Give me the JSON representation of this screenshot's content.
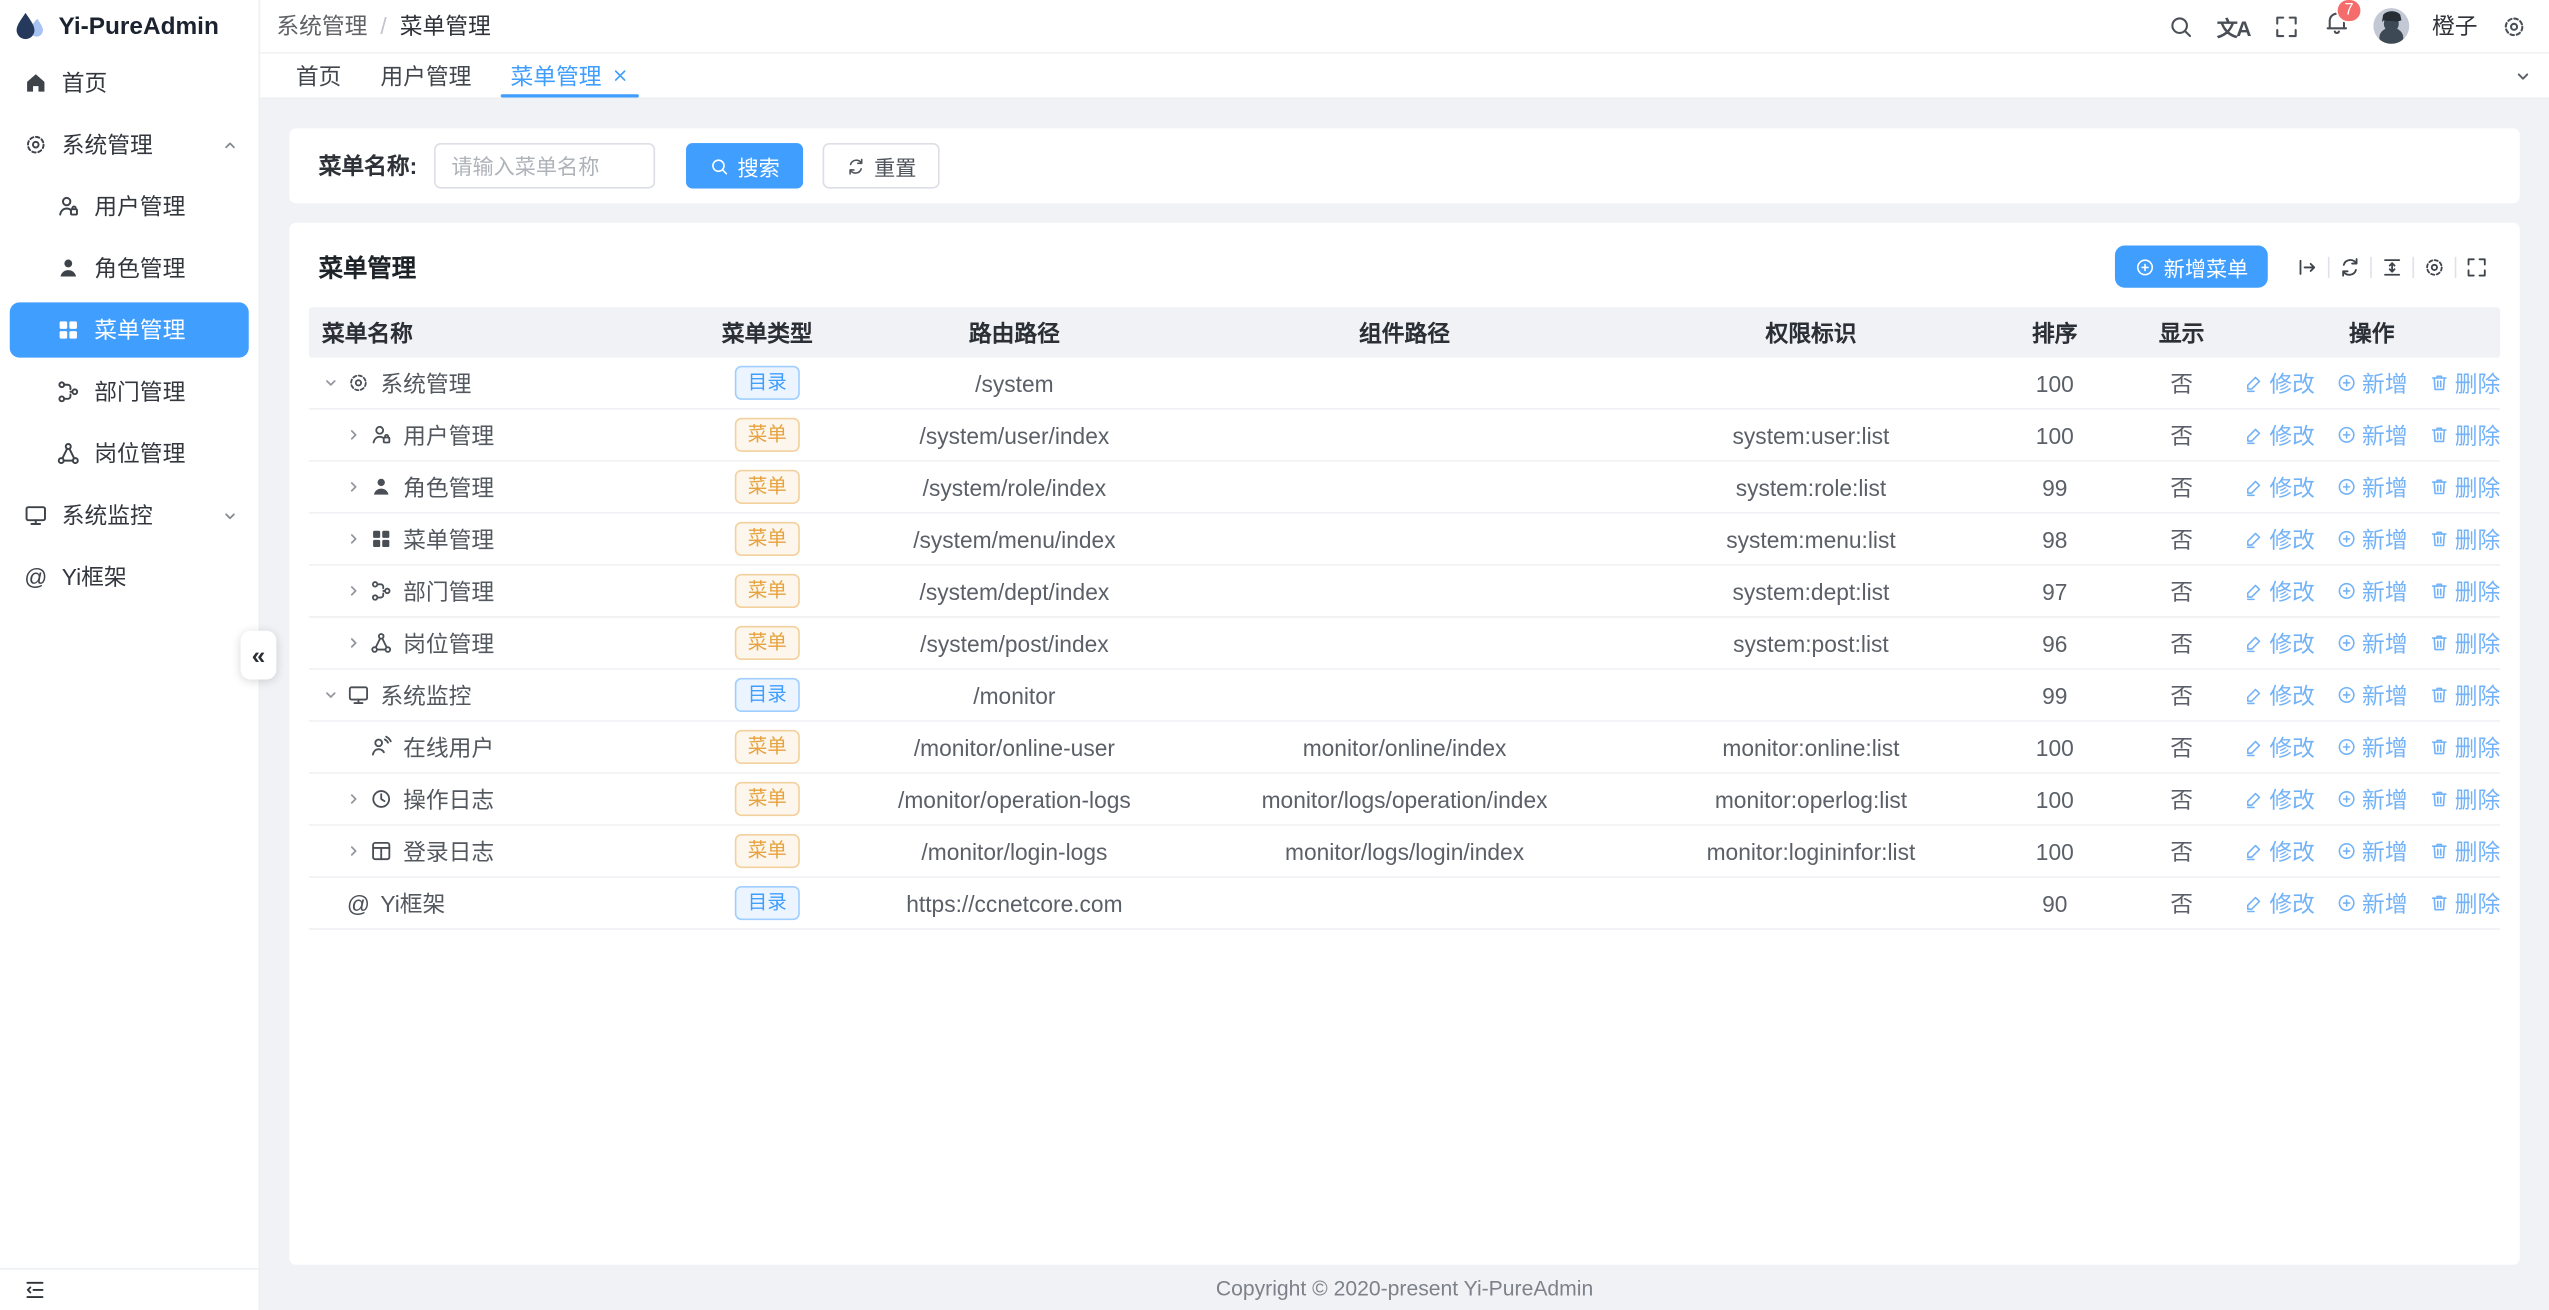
{
  "app": {
    "title": "Yi-PureAdmin",
    "logo_icon": "water-drop"
  },
  "header": {
    "breadcrumb": [
      "系统管理",
      "菜单管理"
    ],
    "separator": "/",
    "icons": [
      "search",
      "translate",
      "fullscreen",
      "bell",
      "settings"
    ],
    "notification_count": "7",
    "username": "橙子"
  },
  "tabs": [
    {
      "key": "home",
      "label": "首页",
      "active": false,
      "closable": false
    },
    {
      "key": "user-mgmt",
      "label": "用户管理",
      "active": false,
      "closable": false
    },
    {
      "key": "menu-mgmt",
      "label": "菜单管理",
      "active": true,
      "closable": true
    }
  ],
  "sidebar": {
    "items": [
      {
        "key": "home",
        "label": "首页",
        "icon": "home",
        "level": 0,
        "active": false,
        "chevron": "none"
      },
      {
        "key": "system-admin",
        "label": "系统管理",
        "icon": "gear",
        "level": 0,
        "active": false,
        "chevron": "up"
      },
      {
        "key": "user-mgmt",
        "label": "用户管理",
        "icon": "user",
        "level": 1,
        "active": false,
        "chevron": "none"
      },
      {
        "key": "role-mgmt",
        "label": "角色管理",
        "icon": "user-solid",
        "level": 1,
        "active": false,
        "chevron": "none"
      },
      {
        "key": "menu-mgmt",
        "label": "菜单管理",
        "icon": "grid",
        "level": 1,
        "active": true,
        "chevron": "none"
      },
      {
        "key": "dept-mgmt",
        "label": "部门管理",
        "icon": "branch",
        "level": 1,
        "active": false,
        "chevron": "none"
      },
      {
        "key": "post-mgmt",
        "label": "岗位管理",
        "icon": "network",
        "level": 1,
        "active": false,
        "chevron": "none"
      },
      {
        "key": "system-monitor",
        "label": "系统监控",
        "icon": "monitor",
        "level": 0,
        "active": false,
        "chevron": "down"
      },
      {
        "key": "yi-frame",
        "label": "Yi框架",
        "icon": "at",
        "level": 0,
        "active": false,
        "chevron": "none"
      }
    ]
  },
  "search": {
    "label": "菜单名称:",
    "placeholder": "请输入菜单名称",
    "value": "",
    "search_label": "搜索",
    "reset_label": "重置"
  },
  "panel": {
    "title": "菜单管理",
    "add_label": "新增菜单",
    "toolbar_icons": [
      "arrow-from-bar",
      "refresh",
      "density",
      "settings",
      "fullscreen"
    ]
  },
  "table": {
    "columns": [
      "菜单名称",
      "菜单类型",
      "路由路径",
      "组件路径",
      "权限标识",
      "排序",
      "显示",
      "操作"
    ],
    "badges": {
      "dir": "目录",
      "menu": "菜单"
    },
    "actions": {
      "edit": "修改",
      "add": "新增",
      "delete": "删除"
    },
    "rows": [
      {
        "key": "system-admin",
        "name": "系统管理",
        "icon": "gear",
        "level": 0,
        "expand": "open",
        "type": "dir",
        "route": "/system",
        "component": "",
        "permission": "",
        "sort": "100",
        "visible": "否"
      },
      {
        "key": "user-mgmt",
        "name": "用户管理",
        "icon": "user",
        "level": 1,
        "expand": "closed",
        "type": "menu",
        "route": "/system/user/index",
        "component": "",
        "permission": "system:user:list",
        "sort": "100",
        "visible": "否"
      },
      {
        "key": "role-mgmt",
        "name": "角色管理",
        "icon": "user-solid",
        "level": 1,
        "expand": "closed",
        "type": "menu",
        "route": "/system/role/index",
        "component": "",
        "permission": "system:role:list",
        "sort": "99",
        "visible": "否"
      },
      {
        "key": "menu-mgmt",
        "name": "菜单管理",
        "icon": "grid",
        "level": 1,
        "expand": "closed",
        "type": "menu",
        "route": "/system/menu/index",
        "component": "",
        "permission": "system:menu:list",
        "sort": "98",
        "visible": "否"
      },
      {
        "key": "dept-mgmt",
        "name": "部门管理",
        "icon": "branch",
        "level": 1,
        "expand": "closed",
        "type": "menu",
        "route": "/system/dept/index",
        "component": "",
        "permission": "system:dept:list",
        "sort": "97",
        "visible": "否"
      },
      {
        "key": "post-mgmt",
        "name": "岗位管理",
        "icon": "network",
        "level": 1,
        "expand": "closed",
        "type": "menu",
        "route": "/system/post/index",
        "component": "",
        "permission": "system:post:list",
        "sort": "96",
        "visible": "否"
      },
      {
        "key": "system-monitor",
        "name": "系统监控",
        "icon": "monitor",
        "level": 0,
        "expand": "open",
        "type": "dir",
        "route": "/monitor",
        "component": "",
        "permission": "",
        "sort": "99",
        "visible": "否"
      },
      {
        "key": "online-user",
        "name": "在线用户",
        "icon": "online-user",
        "level": 1,
        "expand": "none",
        "type": "menu",
        "route": "/monitor/online-user",
        "component": "monitor/online/index",
        "permission": "monitor:online:list",
        "sort": "100",
        "visible": "否"
      },
      {
        "key": "operation-logs",
        "name": "操作日志",
        "icon": "clock",
        "level": 1,
        "expand": "closed",
        "type": "menu",
        "route": "/monitor/operation-logs",
        "component": "monitor/logs/operation/index",
        "permission": "monitor:operlog:list",
        "sort": "100",
        "visible": "否"
      },
      {
        "key": "login-logs",
        "name": "登录日志",
        "icon": "journal",
        "level": 1,
        "expand": "closed",
        "type": "menu",
        "route": "/monitor/login-logs",
        "component": "monitor/logs/login/index",
        "permission": "monitor:logininfor:list",
        "sort": "100",
        "visible": "否"
      },
      {
        "key": "yi-frame",
        "name": "Yi框架",
        "icon": "at",
        "level": 0,
        "expand": "none",
        "type": "dir",
        "route": "https://ccnetcore.com",
        "component": "",
        "permission": "",
        "sort": "90",
        "visible": "否"
      }
    ]
  },
  "footer": {
    "copyright": "Copyright © 2020-present Yi-PureAdmin"
  },
  "colors": {
    "primary": "#409eff",
    "action_link": "#72b2f8",
    "badge_dir": "#409eff",
    "badge_menu": "#e6a23c",
    "notification": "#f56c6c",
    "content_bg": "#f0f2f5"
  }
}
